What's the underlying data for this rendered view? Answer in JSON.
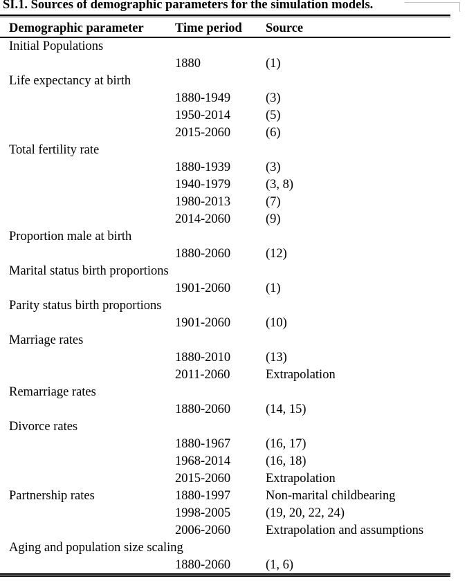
{
  "title": "SI.1. Sources of demographic parameters for the simulation models.",
  "headers": {
    "parameter": "Demographic parameter",
    "period": "Time period",
    "source": "Source"
  },
  "rows": [
    {
      "parameter": "Initial Populations",
      "period": "",
      "source": ""
    },
    {
      "parameter": "",
      "period": "1880",
      "source": "(1)"
    },
    {
      "parameter": "Life expectancy at birth",
      "period": "",
      "source": ""
    },
    {
      "parameter": "",
      "period": "1880-1949",
      "source": "(3)"
    },
    {
      "parameter": "",
      "period": "1950-2014",
      "source": "(5)"
    },
    {
      "parameter": "",
      "period": "2015-2060",
      "source": "(6)"
    },
    {
      "parameter": "Total fertility rate",
      "period": "",
      "source": ""
    },
    {
      "parameter": "",
      "period": "1880-1939",
      "source": "(3)"
    },
    {
      "parameter": "",
      "period": "1940-1979",
      "source": "(3, 8)"
    },
    {
      "parameter": "",
      "period": "1980-2013",
      "source": "(7)"
    },
    {
      "parameter": "",
      "period": "2014-2060",
      "source": "(9)"
    },
    {
      "parameter": "Proportion male at birth",
      "period": "",
      "source": ""
    },
    {
      "parameter": "",
      "period": "1880-2060",
      "source": "(12)"
    },
    {
      "parameter": "Marital status birth proportions",
      "period": "",
      "source": ""
    },
    {
      "parameter": "",
      "period": "1901-2060",
      "source": "(1)"
    },
    {
      "parameter": "Parity status birth proportions",
      "period": "",
      "source": ""
    },
    {
      "parameter": "",
      "period": "1901-2060",
      "source": "(10)"
    },
    {
      "parameter": "Marriage rates",
      "period": "",
      "source": ""
    },
    {
      "parameter": "",
      "period": "1880-2010",
      "source": "(13)"
    },
    {
      "parameter": "",
      "period": "2011-2060",
      "source": "Extrapolation"
    },
    {
      "parameter": "Remarriage rates",
      "period": "",
      "source": ""
    },
    {
      "parameter": "",
      "period": "1880-2060",
      "source": "(14, 15)"
    },
    {
      "parameter": "Divorce rates",
      "period": "",
      "source": ""
    },
    {
      "parameter": "",
      "period": "1880-1967",
      "source": "(16, 17)"
    },
    {
      "parameter": "",
      "period": "1968-2014",
      "source": "(16, 18)"
    },
    {
      "parameter": "",
      "period": "2015-2060",
      "source": "Extrapolation"
    },
    {
      "parameter": "Partnership rates",
      "period": "1880-1997",
      "source": "Non-marital childbearing"
    },
    {
      "parameter": "",
      "period": "1998-2005",
      "source": "(19, 20, 22, 24)"
    },
    {
      "parameter": "",
      "period": "2006-2060",
      "source": "Extrapolation and assumptions"
    },
    {
      "parameter": "Aging and population size scaling",
      "period": "",
      "source": ""
    },
    {
      "parameter": "",
      "period": "1880-2060",
      "source": "(1, 6)"
    }
  ]
}
